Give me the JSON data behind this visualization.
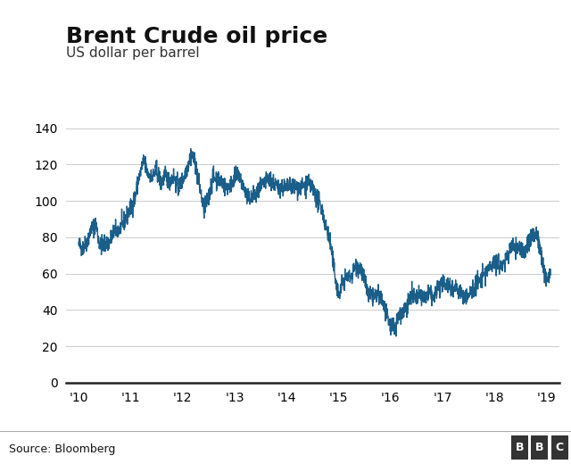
{
  "title": "Brent Crude oil price",
  "subtitle": "US dollar per barrel",
  "source": "Source: Bloomberg",
  "bbc_letters": [
    "B",
    "B",
    "C"
  ],
  "line_color": "#1a5e8a",
  "background_color": "#ffffff",
  "footer_bg": "#d8d8d8",
  "ylim": [
    0,
    148
  ],
  "yticks": [
    0,
    20,
    40,
    60,
    80,
    100,
    120,
    140
  ],
  "xtick_positions": [
    2010,
    2011,
    2012,
    2013,
    2014,
    2015,
    2016,
    2017,
    2018,
    2019
  ],
  "xtick_labels": [
    "'10",
    "'11",
    "'12",
    "'13",
    "'14",
    "'15",
    "'16",
    "'17",
    "'18",
    "'19"
  ],
  "xlim_left": 2009.75,
  "xlim_right": 2019.25,
  "grid_color": "#cccccc",
  "spine_color": "#222222",
  "title_fontsize": 18,
  "subtitle_fontsize": 11,
  "tick_fontsize": 10,
  "source_fontsize": 9,
  "line_width": 1.0
}
